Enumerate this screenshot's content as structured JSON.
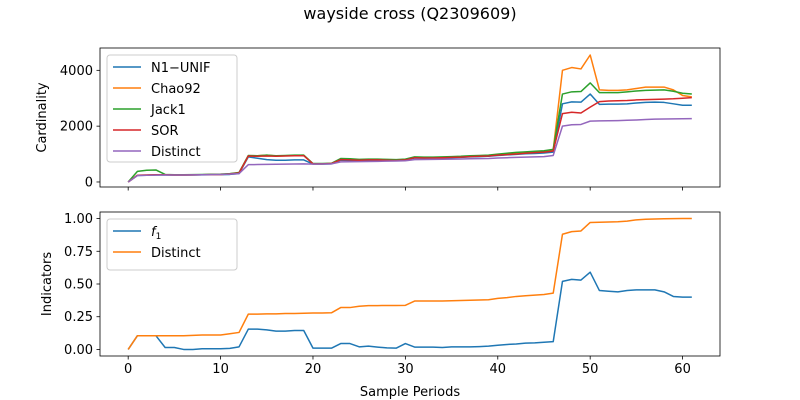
{
  "chart_data": [
    {
      "type": "line",
      "title": "wayside cross (Q2309609)",
      "xlabel": "",
      "ylabel": "Cardinality",
      "xlim": [
        -3.05,
        64.05
      ],
      "ylim": [
        -180,
        4800
      ],
      "yticks": [
        0,
        2000,
        4000
      ],
      "xticks": [
        0,
        10,
        20,
        30,
        40,
        50,
        60
      ],
      "show_xtick_labels": false,
      "legend_position": "upper-left",
      "x": [
        0,
        1,
        2,
        3,
        4,
        5,
        6,
        7,
        8,
        9,
        10,
        11,
        12,
        13,
        14,
        15,
        16,
        17,
        18,
        19,
        20,
        21,
        22,
        23,
        24,
        25,
        26,
        27,
        28,
        29,
        30,
        31,
        32,
        33,
        34,
        35,
        36,
        37,
        38,
        39,
        40,
        41,
        42,
        43,
        44,
        45,
        46,
        47,
        48,
        49,
        50,
        51,
        52,
        53,
        54,
        55,
        56,
        57,
        58,
        59,
        60,
        61
      ],
      "series": [
        {
          "name": "N1−UNIF",
          "color": "#1f77b4",
          "values": [
            0,
            230,
            240,
            250,
            250,
            245,
            245,
            250,
            255,
            260,
            265,
            270,
            300,
            900,
            850,
            800,
            780,
            780,
            790,
            790,
            640,
            640,
            650,
            780,
            770,
            760,
            770,
            770,
            760,
            760,
            780,
            860,
            850,
            855,
            860,
            870,
            880,
            900,
            910,
            920,
            950,
            970,
            990,
            1010,
            1020,
            1040,
            1070,
            2800,
            2870,
            2860,
            3150,
            2780,
            2790,
            2790,
            2800,
            2830,
            2850,
            2860,
            2850,
            2800,
            2750,
            2750
          ]
        },
        {
          "name": "Chao92",
          "color": "#ff7f0e",
          "values": [
            0,
            240,
            250,
            260,
            260,
            250,
            250,
            255,
            260,
            265,
            270,
            290,
            330,
            930,
            940,
            960,
            930,
            940,
            950,
            960,
            650,
            650,
            660,
            820,
            810,
            790,
            800,
            800,
            790,
            780,
            800,
            880,
            870,
            870,
            880,
            890,
            900,
            920,
            930,
            940,
            980,
            1000,
            1030,
            1060,
            1080,
            1100,
            1150,
            4000,
            4100,
            4050,
            4550,
            3300,
            3280,
            3280,
            3300,
            3350,
            3400,
            3400,
            3400,
            3300,
            3100,
            3050
          ]
        },
        {
          "name": "Jack1",
          "color": "#2ca02c",
          "values": [
            0,
            380,
            420,
            430,
            270,
            260,
            260,
            265,
            270,
            275,
            280,
            300,
            340,
            950,
            940,
            960,
            940,
            950,
            960,
            960,
            660,
            660,
            670,
            840,
            830,
            810,
            820,
            820,
            810,
            800,
            820,
            900,
            890,
            890,
            900,
            910,
            920,
            940,
            950,
            960,
            1000,
            1030,
            1060,
            1080,
            1100,
            1120,
            1170,
            3150,
            3230,
            3240,
            3550,
            3200,
            3200,
            3200,
            3230,
            3260,
            3280,
            3290,
            3300,
            3250,
            3180,
            3150
          ]
        },
        {
          "name": "SOR",
          "color": "#d62728",
          "values": [
            0,
            240,
            250,
            260,
            260,
            250,
            250,
            255,
            260,
            265,
            270,
            290,
            320,
            930,
            920,
            930,
            920,
            930,
            940,
            940,
            650,
            650,
            660,
            800,
            790,
            780,
            790,
            790,
            780,
            770,
            790,
            870,
            860,
            860,
            870,
            880,
            890,
            910,
            920,
            930,
            960,
            980,
            1000,
            1030,
            1050,
            1070,
            1110,
            2450,
            2500,
            2470,
            2680,
            2880,
            2900,
            2910,
            2920,
            2940,
            2950,
            2960,
            2970,
            2980,
            3000,
            3020
          ]
        },
        {
          "name": "Distinct",
          "color": "#9467bd",
          "values": [
            0,
            230,
            240,
            245,
            250,
            250,
            250,
            255,
            260,
            265,
            270,
            280,
            300,
            620,
            625,
            630,
            635,
            640,
            645,
            650,
            640,
            645,
            650,
            720,
            725,
            730,
            735,
            740,
            745,
            750,
            760,
            800,
            805,
            810,
            815,
            820,
            825,
            830,
            835,
            840,
            860,
            870,
            880,
            890,
            900,
            910,
            950,
            2000,
            2050,
            2060,
            2180,
            2190,
            2195,
            2200,
            2210,
            2220,
            2240,
            2250,
            2255,
            2260,
            2265,
            2270
          ]
        }
      ]
    },
    {
      "type": "line",
      "title": "",
      "xlabel": "Sample Periods",
      "ylabel": "Indicators",
      "xlim": [
        -3.05,
        64.05
      ],
      "ylim": [
        -0.05,
        1.05
      ],
      "yticks": [
        0.0,
        0.25,
        0.5,
        0.75,
        1.0
      ],
      "ytick_labels": [
        "0.00",
        "0.25",
        "0.50",
        "0.75",
        "1.00"
      ],
      "xticks": [
        0,
        10,
        20,
        30,
        40,
        50,
        60
      ],
      "xtick_labels": [
        "0",
        "10",
        "20",
        "30",
        "40",
        "50",
        "60"
      ],
      "legend_position": "upper-left",
      "x": [
        0,
        1,
        2,
        3,
        4,
        5,
        6,
        7,
        8,
        9,
        10,
        11,
        12,
        13,
        14,
        15,
        16,
        17,
        18,
        19,
        20,
        21,
        22,
        23,
        24,
        25,
        26,
        27,
        28,
        29,
        30,
        31,
        32,
        33,
        34,
        35,
        36,
        37,
        38,
        39,
        40,
        41,
        42,
        43,
        44,
        45,
        46,
        47,
        48,
        49,
        50,
        51,
        52,
        53,
        54,
        55,
        56,
        57,
        58,
        59,
        60,
        61
      ],
      "series": [
        {
          "name": "f1",
          "color": "#1f77b4",
          "values": [
            0,
            0.105,
            0.105,
            0.105,
            0.015,
            0.015,
            0,
            0,
            0.005,
            0.005,
            0.005,
            0.008,
            0.02,
            0.155,
            0.155,
            0.15,
            0.14,
            0.14,
            0.145,
            0.145,
            0.01,
            0.01,
            0.01,
            0.045,
            0.045,
            0.02,
            0.025,
            0.018,
            0.012,
            0.01,
            0.045,
            0.018,
            0.018,
            0.018,
            0.015,
            0.02,
            0.02,
            0.02,
            0.022,
            0.025,
            0.032,
            0.038,
            0.042,
            0.048,
            0.05,
            0.055,
            0.06,
            0.52,
            0.535,
            0.53,
            0.59,
            0.45,
            0.445,
            0.44,
            0.45,
            0.455,
            0.455,
            0.455,
            0.44,
            0.405,
            0.4,
            0.4
          ]
        },
        {
          "name": "Distinct",
          "color": "#ff7f0e",
          "values": [
            0,
            0.105,
            0.105,
            0.105,
            0.105,
            0.105,
            0.105,
            0.108,
            0.11,
            0.11,
            0.11,
            0.12,
            0.13,
            0.27,
            0.27,
            0.272,
            0.272,
            0.275,
            0.275,
            0.277,
            0.278,
            0.278,
            0.28,
            0.32,
            0.32,
            0.33,
            0.335,
            0.335,
            0.336,
            0.336,
            0.337,
            0.37,
            0.37,
            0.37,
            0.37,
            0.372,
            0.374,
            0.376,
            0.378,
            0.38,
            0.39,
            0.396,
            0.405,
            0.41,
            0.415,
            0.42,
            0.43,
            0.88,
            0.9,
            0.905,
            0.97,
            0.972,
            0.974,
            0.976,
            0.98,
            0.99,
            0.995,
            0.997,
            0.998,
            0.999,
            1.0,
            1.0
          ]
        }
      ]
    }
  ]
}
